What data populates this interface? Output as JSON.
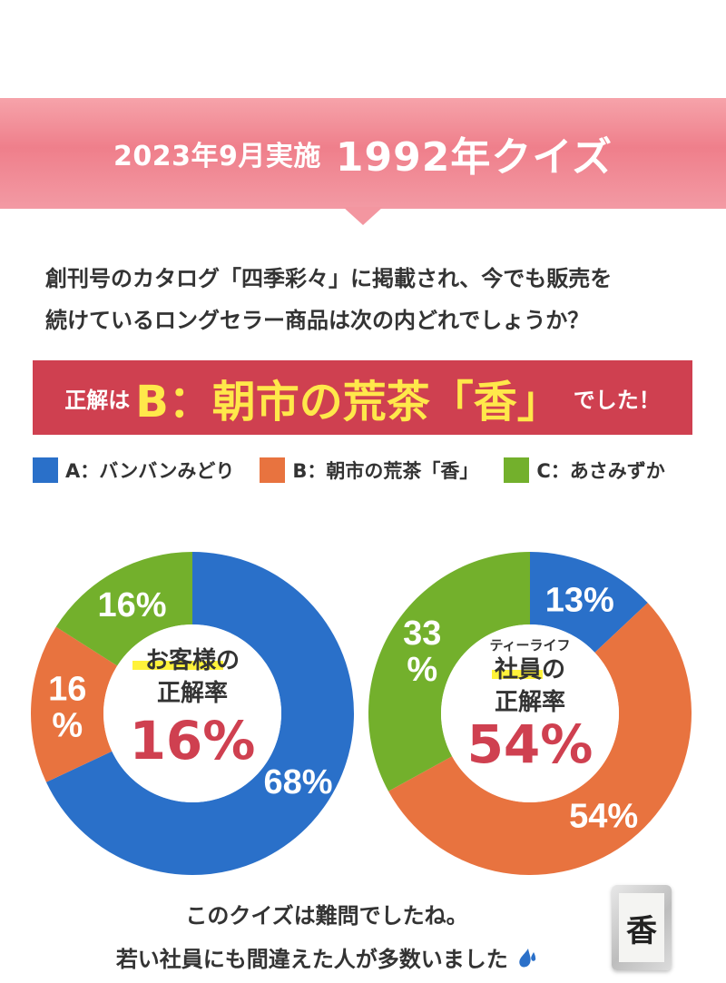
{
  "header": {
    "subtitle": "2023年9月実施",
    "title": "1992年クイズ",
    "background": "#ef7f8b"
  },
  "question": {
    "line1": "創刊号のカタログ「四季彩々」に掲載され、今でも販売を",
    "line2": "続けているロングセラー商品は次の内どれでしょうか？"
  },
  "answer": {
    "prefix": "正解は",
    "main": "B：朝市の荒茶「香」",
    "suffix": "でした！",
    "background": "#cf4050",
    "highlight": "#ffe84a"
  },
  "legend": [
    {
      "label": "A：バンバンみどり",
      "color": "#2a70c9"
    },
    {
      "label": "B：朝市の荒茶「香」",
      "color": "#e8733f"
    },
    {
      "label": "C：あさみずか",
      "color": "#73b02c"
    }
  ],
  "chart_data": [
    {
      "type": "pie",
      "donut": true,
      "center_label": {
        "line1": "お客様の",
        "line2": "正解率",
        "value": "16%"
      },
      "categories": [
        "A：バンバンみどり",
        "B：朝市の荒茶「香」",
        "C：あさみずか"
      ],
      "values": [
        68,
        16,
        16
      ],
      "slice_labels": [
        [
          "68%"
        ],
        [
          "16",
          "%"
        ],
        [
          "16%"
        ]
      ],
      "colors": [
        "#2a70c9",
        "#e8733f",
        "#73b02c"
      ]
    },
    {
      "type": "pie",
      "donut": true,
      "center_label": {
        "ruby": "ティーライフ",
        "line1": "社員の",
        "line2": "正解率",
        "value": "54%"
      },
      "categories": [
        "A：バンバンみどり",
        "B：朝市の荒茶「香」",
        "C：あさみずか"
      ],
      "values": [
        13,
        54,
        33
      ],
      "slice_labels": [
        [
          "13%"
        ],
        [
          "54%"
        ],
        [
          "33",
          "%"
        ]
      ],
      "colors": [
        "#2a70c9",
        "#e8733f",
        "#73b02c"
      ]
    }
  ],
  "closing": {
    "line1": "このクイズは難問でしたね。",
    "line2": "若い社員にも間違えた人が多数いました"
  },
  "product": {
    "label": "香"
  }
}
